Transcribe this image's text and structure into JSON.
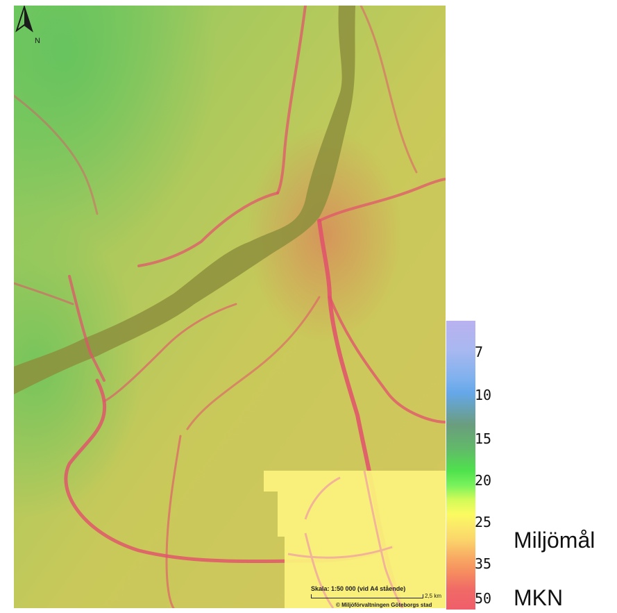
{
  "map": {
    "north_label": "N",
    "scale_title": "Skala: 1:50 000 (vid A4 stående)",
    "scale_distance": "2,5 km",
    "copyright": "© Miljöförvaltningen Göteborgs stad",
    "colors": {
      "base": "#c8c95a",
      "water": "#8d8f3d",
      "roads": "#e2506c",
      "cool_area": "#7fce5e",
      "overlay_patch": "#fbf37d"
    }
  },
  "legend": {
    "ticks": [
      "7",
      "10",
      "15",
      "20",
      "25",
      "35",
      "50"
    ],
    "thresholds": {
      "environmental_goal": "Miljömål",
      "air_quality_standard": "MKN"
    },
    "colors": [
      "#b9b1f0",
      "#65a7e9",
      "#6a9d7e",
      "#4fe24d",
      "#fbfb61",
      "#f8aa63",
      "#ef5e6a"
    ]
  }
}
